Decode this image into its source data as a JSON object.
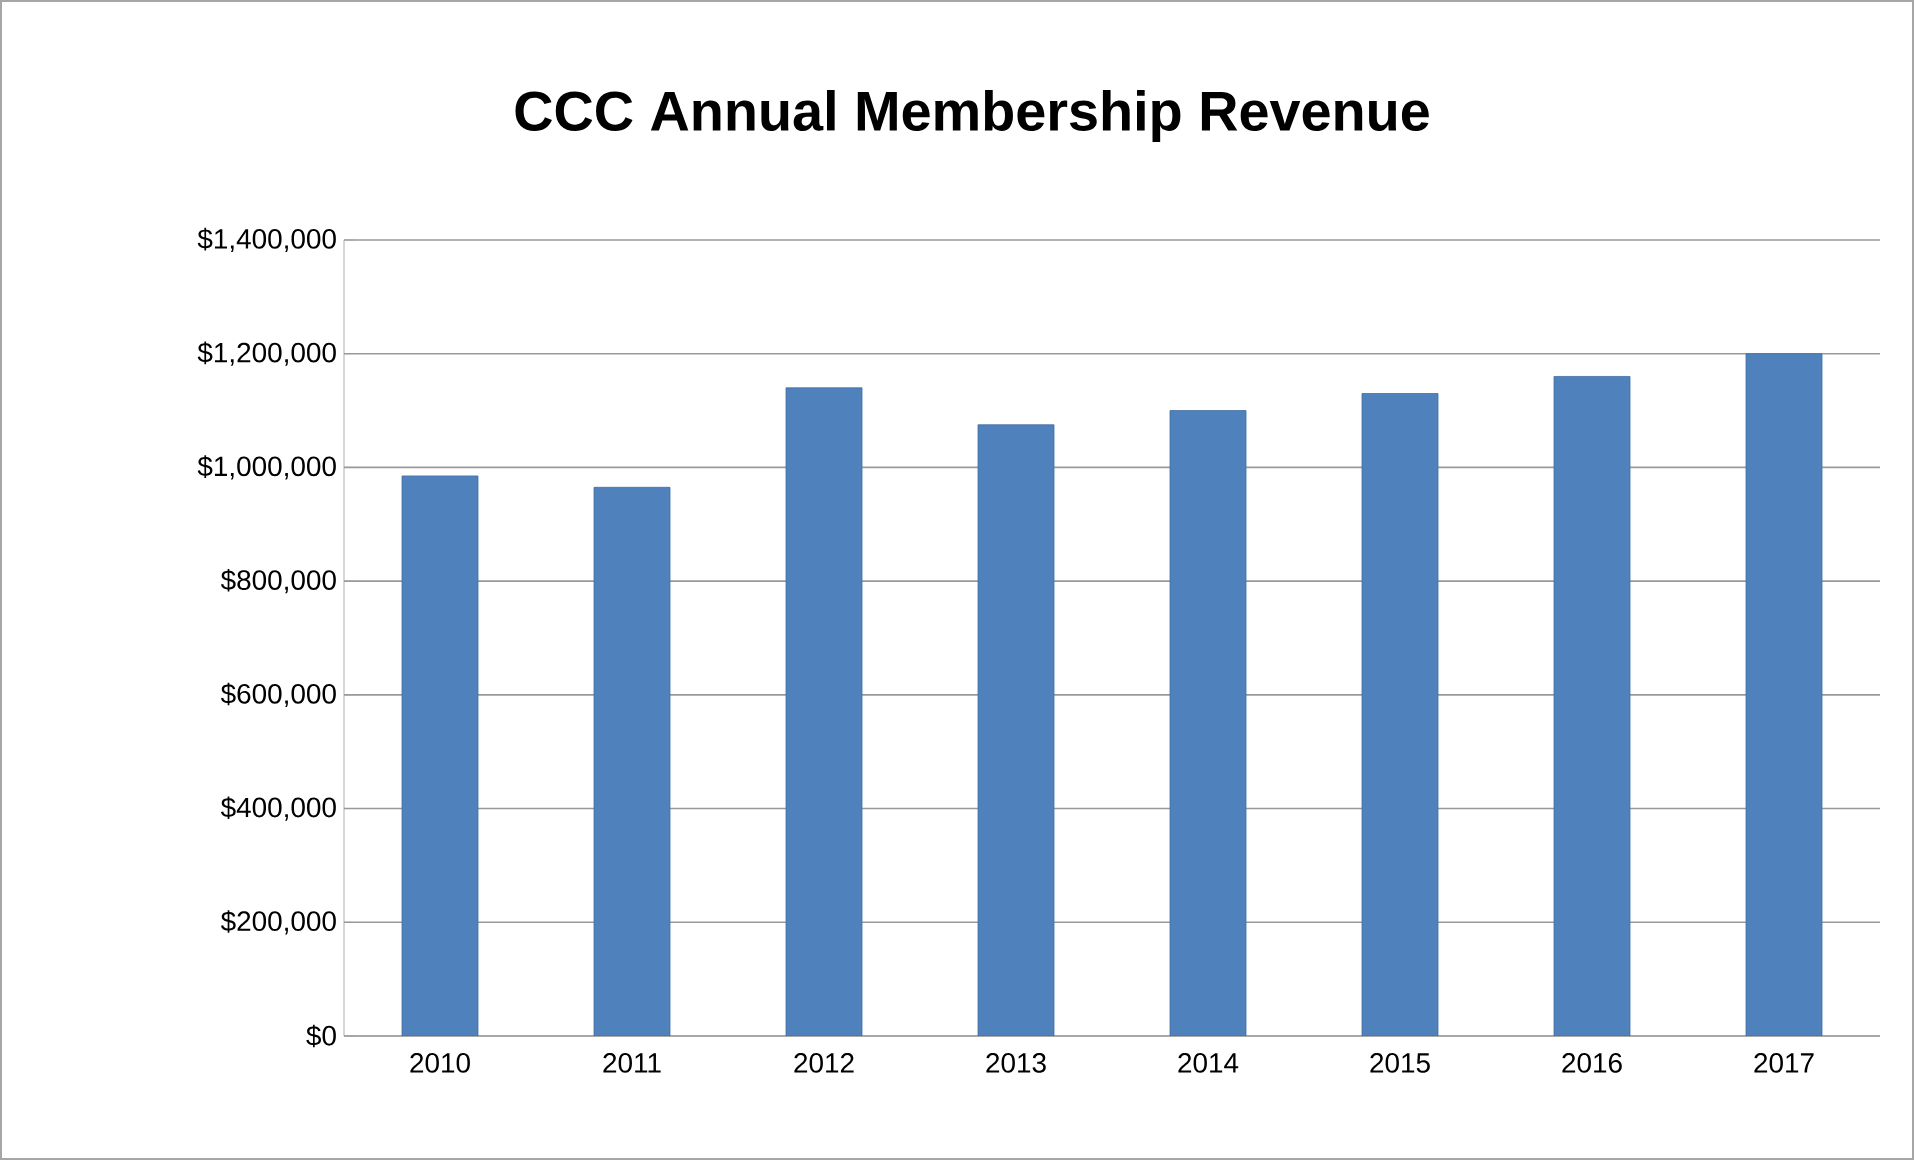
{
  "chart_data": {
    "type": "bar",
    "title": "CCC Annual Membership Revenue",
    "categories": [
      "2010",
      "2011",
      "2012",
      "2013",
      "2014",
      "2015",
      "2016",
      "2017"
    ],
    "values": [
      985000,
      965000,
      1140000,
      1075000,
      1100000,
      1130000,
      1160000,
      1200000
    ],
    "color": "#4f81bd",
    "ylim": [
      0,
      1400000
    ],
    "yticks": [
      {
        "value": 0,
        "label": "$0"
      },
      {
        "value": 200000,
        "label": "$200,000"
      },
      {
        "value": 400000,
        "label": "$400,000"
      },
      {
        "value": 600000,
        "label": "$600,000"
      },
      {
        "value": 800000,
        "label": "$800,000"
      },
      {
        "value": 1000000,
        "label": "$1,000,000"
      },
      {
        "value": 1200000,
        "label": "$1,200,000"
      },
      {
        "value": 1400000,
        "label": "$1,400,000"
      }
    ],
    "grid": "y"
  }
}
